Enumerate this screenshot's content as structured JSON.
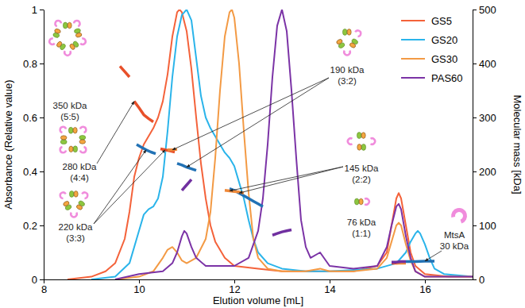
{
  "chart_data": {
    "type": "line",
    "x_label": "Elution volume [mL]",
    "y_label": "Absorbance (Relative value)",
    "y2_label": "Molecular mass [kDa]",
    "xlim": [
      8,
      17
    ],
    "xticks": [
      8,
      10,
      12,
      14,
      16
    ],
    "ylim": [
      0,
      1
    ],
    "yticks": [
      0,
      0.2,
      0.4,
      0.6,
      0.8,
      1
    ],
    "y2lim": [
      0,
      500
    ],
    "y2ticks": [
      0,
      100,
      200,
      300,
      400,
      500
    ],
    "grid": false,
    "legend": "top-right",
    "series": [
      {
        "name": "GS5",
        "color": "#f4623a",
        "x": [
          8.5,
          9.0,
          9.3,
          9.5,
          9.7,
          9.8,
          9.9,
          10.0,
          10.1,
          10.2,
          10.3,
          10.4,
          10.5,
          10.6,
          10.7,
          10.8,
          10.85,
          10.9,
          11.0,
          11.1,
          11.2,
          11.3,
          11.4,
          11.5,
          11.6,
          11.8,
          12.0,
          12.5,
          13.0,
          13.5,
          14.0,
          14.5,
          15.0,
          15.2,
          15.3,
          15.4,
          15.45,
          15.5,
          15.6,
          15.7,
          15.8,
          16.0,
          16.5,
          17.0
        ],
        "values": [
          0,
          0.01,
          0.03,
          0.06,
          0.15,
          0.25,
          0.38,
          0.45,
          0.5,
          0.53,
          0.56,
          0.6,
          0.66,
          0.76,
          0.9,
          0.99,
          1.0,
          0.99,
          0.92,
          0.78,
          0.6,
          0.43,
          0.3,
          0.2,
          0.14,
          0.08,
          0.05,
          0.04,
          0.03,
          0.03,
          0.03,
          0.03,
          0.05,
          0.1,
          0.2,
          0.3,
          0.32,
          0.3,
          0.2,
          0.1,
          0.05,
          0.02,
          0.01,
          0.01
        ]
      },
      {
        "name": "GS20",
        "color": "#2ab4ea",
        "x": [
          9.0,
          9.5,
          9.8,
          10.0,
          10.1,
          10.2,
          10.3,
          10.4,
          10.5,
          10.6,
          10.7,
          10.8,
          10.9,
          11.0,
          11.1,
          11.2,
          11.3,
          11.4,
          11.5,
          11.6,
          11.7,
          11.8,
          11.9,
          12.0,
          12.1,
          12.2,
          12.3,
          12.4,
          12.5,
          12.7,
          13.0,
          13.5,
          14.0,
          15.0,
          15.4,
          15.6,
          15.7,
          15.8,
          15.85,
          15.9,
          16.0,
          16.1,
          16.2,
          16.4,
          17.0
        ],
        "values": [
          0,
          0.01,
          0.06,
          0.18,
          0.24,
          0.26,
          0.27,
          0.3,
          0.38,
          0.55,
          0.75,
          0.9,
          0.98,
          1.0,
          0.96,
          0.82,
          0.68,
          0.6,
          0.56,
          0.53,
          0.5,
          0.47,
          0.45,
          0.42,
          0.36,
          0.3,
          0.22,
          0.15,
          0.1,
          0.06,
          0.04,
          0.03,
          0.03,
          0.04,
          0.06,
          0.1,
          0.14,
          0.17,
          0.18,
          0.17,
          0.13,
          0.08,
          0.04,
          0.02,
          0.01
        ]
      },
      {
        "name": "GS30",
        "color": "#f39a44",
        "x": [
          9.5,
          10.0,
          10.3,
          10.5,
          10.6,
          10.7,
          10.8,
          10.9,
          11.0,
          11.2,
          11.4,
          11.5,
          11.6,
          11.7,
          11.8,
          11.9,
          11.95,
          12.0,
          12.1,
          12.2,
          12.3,
          12.4,
          12.5,
          12.7,
          13.0,
          13.5,
          13.8,
          14.0,
          14.5,
          15.0,
          15.2,
          15.3,
          15.4,
          15.45,
          15.5,
          15.6,
          15.7,
          15.8,
          16.0,
          16.5,
          17.0
        ],
        "values": [
          0,
          0.01,
          0.03,
          0.08,
          0.11,
          0.12,
          0.1,
          0.07,
          0.06,
          0.08,
          0.15,
          0.25,
          0.45,
          0.7,
          0.9,
          0.99,
          1.0,
          0.97,
          0.8,
          0.55,
          0.32,
          0.15,
          0.08,
          0.04,
          0.03,
          0.03,
          0.04,
          0.03,
          0.03,
          0.04,
          0.08,
          0.14,
          0.2,
          0.21,
          0.2,
          0.13,
          0.07,
          0.03,
          0.01,
          0.01,
          0.01
        ]
      },
      {
        "name": "PAS60",
        "color": "#7b33a6",
        "x": [
          9.5,
          10.0,
          10.5,
          10.7,
          10.8,
          10.9,
          10.95,
          11.0,
          11.1,
          11.2,
          11.4,
          11.7,
          12.0,
          12.3,
          12.5,
          12.6,
          12.7,
          12.8,
          12.9,
          13.0,
          13.1,
          13.2,
          13.3,
          13.4,
          13.5,
          13.6,
          13.8,
          14.0,
          14.5,
          15.0,
          15.2,
          15.3,
          15.4,
          15.45,
          15.5,
          15.6,
          15.7,
          15.8,
          16.0,
          16.5,
          17.0
        ],
        "values": [
          0,
          0.02,
          0.03,
          0.06,
          0.1,
          0.16,
          0.18,
          0.17,
          0.12,
          0.08,
          0.05,
          0.05,
          0.05,
          0.08,
          0.18,
          0.3,
          0.5,
          0.75,
          0.94,
          1.0,
          0.92,
          0.7,
          0.45,
          0.22,
          0.12,
          0.08,
          0.1,
          0.05,
          0.04,
          0.05,
          0.12,
          0.2,
          0.27,
          0.28,
          0.26,
          0.16,
          0.08,
          0.03,
          0.01,
          0.01,
          0.01
        ]
      },
      {
        "axis": "y2",
        "color": "#e8502a",
        "x": [
          9.6,
          9.7,
          9.8,
          9.85,
          9.9,
          10.0,
          10.1,
          10.2,
          10.3,
          10.35,
          10.45,
          10.55,
          10.65,
          10.75,
          15.2,
          15.3,
          15.4,
          15.5,
          15.6
        ],
        "values": [
          395,
          385,
          375,
          null,
          330,
          318,
          305,
          298,
          292,
          null,
          242,
          240,
          238,
          236,
          null,
          30,
          30,
          31,
          31
        ]
      },
      {
        "axis": "y2",
        "color": "#2272b5",
        "x": [
          9.95,
          10.05,
          10.15,
          10.25,
          10.35,
          10.5,
          10.8,
          10.9,
          11.0,
          11.1,
          11.2,
          11.5,
          11.9,
          12.0,
          12.1,
          12.2,
          12.3,
          12.4,
          12.5,
          12.6,
          15.0,
          15.6,
          15.8,
          16.0,
          16.2
        ],
        "values": [
          250,
          245,
          240,
          236,
          233,
          null,
          215,
          212,
          208,
          205,
          202,
          null,
          168,
          165,
          160,
          155,
          150,
          145,
          140,
          135,
          null,
          33,
          33,
          34,
          34
        ]
      },
      {
        "axis": "y2",
        "color": "#f08a3a",
        "x": [
          10.6,
          10.7,
          10.8,
          10.85,
          11.8,
          11.9,
          12.0,
          12.1,
          12.2,
          15.3,
          15.4,
          15.5,
          15.6
        ],
        "values": [
          240,
          240,
          241,
          null,
          165,
          164,
          163,
          162,
          160,
          null,
          30,
          30,
          30
        ]
      },
      {
        "axis": "y2",
        "color": "#7030a0",
        "x": [
          10.9,
          11.0,
          11.1,
          11.15,
          12.8,
          12.9,
          13.0,
          13.1,
          13.2,
          15.2,
          15.3,
          15.4,
          15.5,
          15.6
        ],
        "values": [
          165,
          175,
          185,
          null,
          82,
          85,
          88,
          90,
          92,
          null,
          32,
          32,
          33,
          33
        ]
      }
    ],
    "annotations": [
      {
        "lines": [
          "350 kDa",
          "(5:5)"
        ]
      },
      {
        "lines": [
          "280 kDa",
          "(4:4)"
        ]
      },
      {
        "lines": [
          "220 kDa",
          "(3:3)"
        ]
      },
      {
        "lines": [
          "190 kDa",
          "(3:2)"
        ]
      },
      {
        "lines": [
          "145 kDa",
          "(2:2)"
        ]
      },
      {
        "lines": [
          "76 kDa",
          "(1:1)"
        ]
      },
      {
        "lines": [
          "MtsA",
          "30 kDa"
        ]
      }
    ]
  }
}
